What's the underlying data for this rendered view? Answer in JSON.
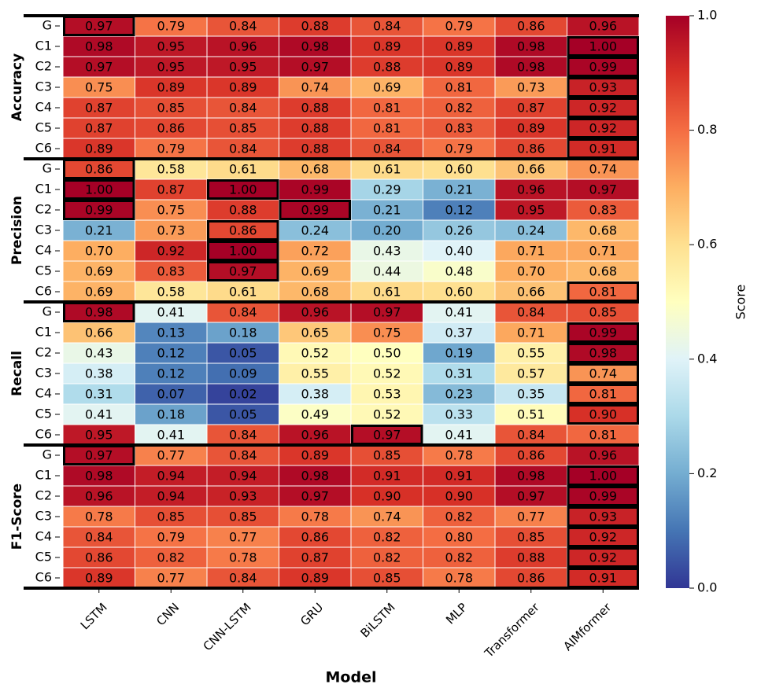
{
  "chart_data": {
    "type": "heatmap",
    "categories": [
      "LSTM",
      "CNN",
      "CNN-LSTM",
      "GRU",
      "BiLSTM",
      "MLP",
      "Transformer",
      "AIMformer"
    ],
    "xlabel": "Model",
    "highlight_row_max": true,
    "groups": [
      {
        "name": "Accuracy",
        "rows": [
          "G",
          "C1",
          "C2",
          "C3",
          "C4",
          "C5",
          "C6"
        ],
        "values": [
          [
            0.97,
            0.79,
            0.84,
            0.88,
            0.84,
            0.79,
            0.86,
            0.96
          ],
          [
            0.98,
            0.95,
            0.96,
            0.98,
            0.89,
            0.89,
            0.98,
            1.0
          ],
          [
            0.97,
            0.95,
            0.95,
            0.97,
            0.88,
            0.89,
            0.98,
            0.99
          ],
          [
            0.75,
            0.89,
            0.89,
            0.74,
            0.69,
            0.81,
            0.73,
            0.93
          ],
          [
            0.87,
            0.85,
            0.84,
            0.88,
            0.81,
            0.82,
            0.87,
            0.92
          ],
          [
            0.87,
            0.86,
            0.85,
            0.88,
            0.81,
            0.83,
            0.89,
            0.92
          ],
          [
            0.89,
            0.79,
            0.84,
            0.88,
            0.84,
            0.79,
            0.86,
            0.91
          ]
        ],
        "value_labels": [
          [
            "0.97",
            "0.79",
            "0.84",
            "0.88",
            "0.84",
            "0.79",
            "0.86",
            "0.96"
          ],
          [
            "0.98",
            "0.95",
            "0.96",
            "0.98",
            "0.89",
            "0.89",
            "0.98",
            "1.00"
          ],
          [
            "0.97",
            "0.95",
            "0.95",
            "0.97",
            "0.88",
            "0.89",
            "0.98",
            "0.99"
          ],
          [
            "0.75",
            "0.89",
            "0.89",
            "0.74",
            "0.69",
            "0.81",
            "0.73",
            "0.93"
          ],
          [
            "0.87",
            "0.85",
            "0.84",
            "0.88",
            "0.81",
            "0.82",
            "0.87",
            "0.92"
          ],
          [
            "0.87",
            "0.86",
            "0.85",
            "0.88",
            "0.81",
            "0.83",
            "0.89",
            "0.92"
          ],
          [
            "0.89",
            "0.79",
            "0.84",
            "0.88",
            "0.84",
            "0.79",
            "0.86",
            "0.91"
          ]
        ]
      },
      {
        "name": "Precision",
        "rows": [
          "G",
          "C1",
          "C2",
          "C3",
          "C4",
          "C5",
          "C6"
        ],
        "values": [
          [
            0.86,
            0.58,
            0.61,
            0.68,
            0.61,
            0.6,
            0.66,
            0.74
          ],
          [
            1.0,
            0.87,
            1.0,
            0.99,
            0.29,
            0.21,
            0.96,
            0.97
          ],
          [
            0.99,
            0.75,
            0.88,
            0.99,
            0.21,
            0.12,
            0.95,
            0.83
          ],
          [
            0.21,
            0.73,
            0.86,
            0.24,
            0.2,
            0.26,
            0.24,
            0.68
          ],
          [
            0.7,
            0.92,
            1.0,
            0.72,
            0.43,
            0.4,
            0.71,
            0.71
          ],
          [
            0.69,
            0.83,
            0.97,
            0.69,
            0.44,
            0.48,
            0.7,
            0.68
          ],
          [
            0.69,
            0.58,
            0.61,
            0.68,
            0.61,
            0.6,
            0.66,
            0.81
          ]
        ],
        "value_labels": [
          [
            "0.86",
            "0.58",
            "0.61",
            "0.68",
            "0.61",
            "0.60",
            "0.66",
            "0.74"
          ],
          [
            "1.00",
            "0.87",
            "1.00",
            "0.99",
            "0.29",
            "0.21",
            "0.96",
            "0.97"
          ],
          [
            "0.99",
            "0.75",
            "0.88",
            "0.99",
            "0.21",
            "0.12",
            "0.95",
            "0.83"
          ],
          [
            "0.21",
            "0.73",
            "0.86",
            "0.24",
            "0.20",
            "0.26",
            "0.24",
            "0.68"
          ],
          [
            "0.70",
            "0.92",
            "1.00",
            "0.72",
            "0.43",
            "0.40",
            "0.71",
            "0.71"
          ],
          [
            "0.69",
            "0.83",
            "0.97",
            "0.69",
            "0.44",
            "0.48",
            "0.70",
            "0.68"
          ],
          [
            "0.69",
            "0.58",
            "0.61",
            "0.68",
            "0.61",
            "0.60",
            "0.66",
            "0.81"
          ]
        ]
      },
      {
        "name": "Recall",
        "rows": [
          "G",
          "C1",
          "C2",
          "C3",
          "C4",
          "C5",
          "C6"
        ],
        "values": [
          [
            0.98,
            0.41,
            0.84,
            0.96,
            0.97,
            0.41,
            0.84,
            0.85
          ],
          [
            0.66,
            0.13,
            0.18,
            0.65,
            0.75,
            0.37,
            0.71,
            0.99
          ],
          [
            0.43,
            0.12,
            0.05,
            0.52,
            0.5,
            0.19,
            0.55,
            0.98
          ],
          [
            0.38,
            0.12,
            0.09,
            0.55,
            0.52,
            0.31,
            0.57,
            0.74
          ],
          [
            0.31,
            0.07,
            0.02,
            0.38,
            0.53,
            0.23,
            0.35,
            0.81
          ],
          [
            0.41,
            0.18,
            0.05,
            0.49,
            0.52,
            0.33,
            0.51,
            0.9
          ],
          [
            0.95,
            0.41,
            0.84,
            0.96,
            0.97,
            0.41,
            0.84,
            0.81
          ]
        ],
        "value_labels": [
          [
            "0.98",
            "0.41",
            "0.84",
            "0.96",
            "0.97",
            "0.41",
            "0.84",
            "0.85"
          ],
          [
            "0.66",
            "0.13",
            "0.18",
            "0.65",
            "0.75",
            "0.37",
            "0.71",
            "0.99"
          ],
          [
            "0.43",
            "0.12",
            "0.05",
            "0.52",
            "0.50",
            "0.19",
            "0.55",
            "0.98"
          ],
          [
            "0.38",
            "0.12",
            "0.09",
            "0.55",
            "0.52",
            "0.31",
            "0.57",
            "0.74"
          ],
          [
            "0.31",
            "0.07",
            "0.02",
            "0.38",
            "0.53",
            "0.23",
            "0.35",
            "0.81"
          ],
          [
            "0.41",
            "0.18",
            "0.05",
            "0.49",
            "0.52",
            "0.33",
            "0.51",
            "0.90"
          ],
          [
            "0.95",
            "0.41",
            "0.84",
            "0.96",
            "0.97",
            "0.41",
            "0.84",
            "0.81"
          ]
        ]
      },
      {
        "name": "F1-Score",
        "rows": [
          "G",
          "C1",
          "C2",
          "C3",
          "C4",
          "C5",
          "C6"
        ],
        "values": [
          [
            0.97,
            0.77,
            0.84,
            0.89,
            0.85,
            0.78,
            0.86,
            0.96
          ],
          [
            0.98,
            0.94,
            0.94,
            0.98,
            0.91,
            0.91,
            0.98,
            1.0
          ],
          [
            0.96,
            0.94,
            0.93,
            0.97,
            0.9,
            0.9,
            0.97,
            0.99
          ],
          [
            0.78,
            0.85,
            0.85,
            0.78,
            0.74,
            0.82,
            0.77,
            0.93
          ],
          [
            0.84,
            0.79,
            0.77,
            0.86,
            0.82,
            0.8,
            0.85,
            0.92
          ],
          [
            0.86,
            0.82,
            0.78,
            0.87,
            0.82,
            0.82,
            0.88,
            0.92
          ],
          [
            0.89,
            0.77,
            0.84,
            0.89,
            0.85,
            0.78,
            0.86,
            0.91
          ]
        ],
        "value_labels": [
          [
            "0.97",
            "0.77",
            "0.84",
            "0.89",
            "0.85",
            "0.78",
            "0.86",
            "0.96"
          ],
          [
            "0.98",
            "0.94",
            "0.94",
            "0.98",
            "0.91",
            "0.91",
            "0.98",
            "1.00"
          ],
          [
            "0.96",
            "0.94",
            "0.93",
            "0.97",
            "0.90",
            "0.90",
            "0.97",
            "0.99"
          ],
          [
            "0.78",
            "0.85",
            "0.85",
            "0.78",
            "0.74",
            "0.82",
            "0.77",
            "0.93"
          ],
          [
            "0.84",
            "0.79",
            "0.77",
            "0.86",
            "0.82",
            "0.80",
            "0.85",
            "0.92"
          ],
          [
            "0.86",
            "0.82",
            "0.78",
            "0.87",
            "0.82",
            "0.82",
            "0.88",
            "0.92"
          ],
          [
            "0.89",
            "0.77",
            "0.84",
            "0.89",
            "0.85",
            "0.78",
            "0.86",
            "0.91"
          ]
        ]
      }
    ],
    "colorbar": {
      "label": "Score",
      "cmap": "RdYlBu_r",
      "lim": [
        0,
        1
      ],
      "ticks": [
        {
          "value": 0,
          "label": "0.0"
        },
        0.2,
        0.4,
        0.6,
        0.8,
        {
          "value": 1,
          "label": "1.0"
        }
      ]
    }
  }
}
